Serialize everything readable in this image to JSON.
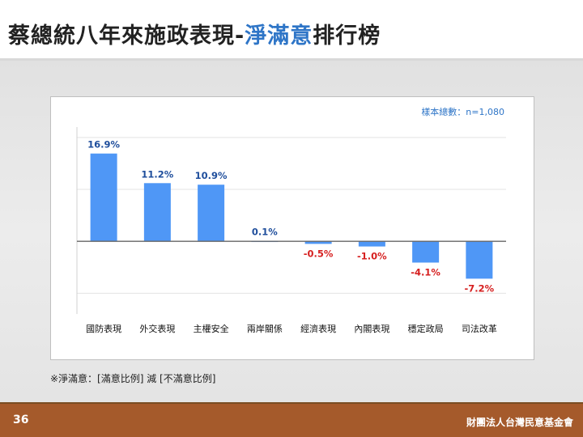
{
  "title": {
    "prefix": "蔡總統八年來施政表現-",
    "highlight": "淨滿意",
    "suffix": "排行榜"
  },
  "colors": {
    "title_highlight": "#2e75c7",
    "bar": "#4f97f6",
    "positive_label": "#1f4e9c",
    "negative_label": "#d62020",
    "footer": "#a55a2b"
  },
  "chart_data": {
    "type": "bar",
    "title": "",
    "xlabel": "",
    "ylabel": "",
    "categories": [
      "國防表現",
      "外交表現",
      "主權安全",
      "兩岸關係",
      "經濟表現",
      "內閣表現",
      "穩定政局",
      "司法改革"
    ],
    "values": [
      16.9,
      11.2,
      10.9,
      0.1,
      -0.5,
      -1.0,
      -4.1,
      -7.2
    ],
    "value_labels": [
      "16.9%",
      "11.2%",
      "10.9%",
      "0.1%",
      "-0.5%",
      "-1.0%",
      "-4.1%",
      "-7.2%"
    ],
    "ylim": [
      -14,
      22
    ],
    "gridlines": [
      -10,
      0,
      10,
      20
    ],
    "grid": true,
    "annotation": "樣本總數：n=1,080"
  },
  "note": "※淨滿意：[滿意比例] 減 [不滿意比例]",
  "footer": {
    "page_number": "36",
    "organization": "財團法人台灣民意基金會"
  }
}
